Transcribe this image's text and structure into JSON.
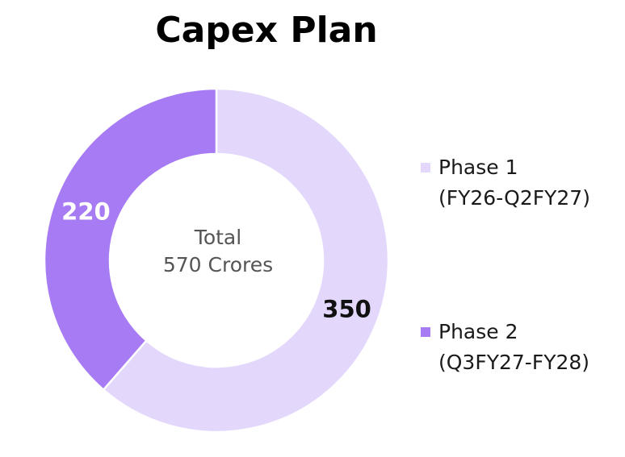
{
  "chart_data": {
    "type": "pie",
    "title": "Capex Plan",
    "donut": true,
    "center_label": [
      "Total",
      "570 Crores"
    ],
    "legend_position": "right",
    "series": [
      {
        "name": "Phase 1",
        "name_line2": "(FY26-Q2FY27)",
        "value": 350,
        "color": "#e3d7fb",
        "label_color": "#111111"
      },
      {
        "name": "Phase 2",
        "name_line2": "(Q3FY27-FY28)",
        "value": 220,
        "color": "#a77bf3",
        "label_color": "#ffffff"
      }
    ]
  }
}
